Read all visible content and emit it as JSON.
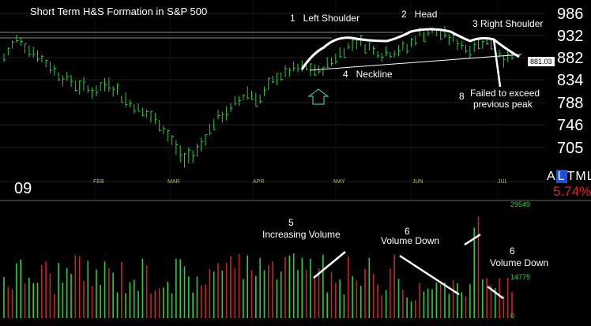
{
  "title": "Short Term H&S Formation in S&P 500",
  "year_label": "09",
  "ticker_letters": [
    "A",
    "L",
    "T",
    "M",
    "L"
  ],
  "change_text": "5.74%",
  "price_box": "881.03",
  "annotations": {
    "left_shoulder": "1   Left Shoulder",
    "head": "2   Head",
    "right_shoulder": "3 Right Shoulder",
    "neckline": "4   Neckline",
    "increasing_num": "5",
    "increasing_text": "Increasing Volume",
    "vol_down_1_num": "6",
    "vol_down_1_text": "Volume Down",
    "vol_down_2_num": "6",
    "vol_down_2_text": "Volume Down",
    "failed_num": "8",
    "failed_line1": "Failed to exceed",
    "failed_line2": "previous peak"
  },
  "colors": {
    "bars": "#2ecc40",
    "volume_up": "#2ecc40",
    "volume_down": "#c0282a",
    "month_labels": "#c8b84a",
    "change_text": "#e02020",
    "ticker_highlight": "#1f4fd8",
    "arrow": "#3fb8b0"
  },
  "chart_data": [
    {
      "type": "line",
      "title": "Short Term H&S Formation in S&P 500",
      "y_axis_labels": [
        "986",
        "932",
        "882",
        "834",
        "788",
        "746",
        "705"
      ],
      "x_axis_labels": [
        "FEB",
        "MAR",
        "APR",
        "MAY",
        "JUN",
        "JUL"
      ],
      "ylim": [
        690,
        1000
      ],
      "price_keypoints": [
        {
          "i": 0,
          "v": 880
        },
        {
          "i": 3,
          "v": 925
        },
        {
          "i": 6,
          "v": 905
        },
        {
          "i": 10,
          "v": 870
        },
        {
          "i": 14,
          "v": 840
        },
        {
          "i": 18,
          "v": 822
        },
        {
          "i": 22,
          "v": 810
        },
        {
          "i": 25,
          "v": 830
        },
        {
          "i": 28,
          "v": 800
        },
        {
          "i": 32,
          "v": 775
        },
        {
          "i": 35,
          "v": 760
        },
        {
          "i": 38,
          "v": 740
        },
        {
          "i": 41,
          "v": 705
        },
        {
          "i": 43,
          "v": 683
        },
        {
          "i": 46,
          "v": 700
        },
        {
          "i": 50,
          "v": 750
        },
        {
          "i": 54,
          "v": 775
        },
        {
          "i": 58,
          "v": 810
        },
        {
          "i": 61,
          "v": 795
        },
        {
          "i": 65,
          "v": 840
        },
        {
          "i": 69,
          "v": 855
        },
        {
          "i": 72,
          "v": 860
        },
        {
          "i": 75,
          "v": 850
        },
        {
          "i": 78,
          "v": 875
        },
        {
          "i": 81,
          "v": 900
        },
        {
          "i": 84,
          "v": 920
        },
        {
          "i": 87,
          "v": 905
        },
        {
          "i": 90,
          "v": 890
        },
        {
          "i": 93,
          "v": 895
        },
        {
          "i": 96,
          "v": 905
        },
        {
          "i": 99,
          "v": 935
        },
        {
          "i": 102,
          "v": 940
        },
        {
          "i": 105,
          "v": 935
        },
        {
          "i": 108,
          "v": 915
        },
        {
          "i": 111,
          "v": 900
        },
        {
          "i": 114,
          "v": 920
        },
        {
          "i": 117,
          "v": 905
        },
        {
          "i": 119,
          "v": 880
        },
        {
          "i": 121,
          "v": 882
        }
      ],
      "bar_count": 122,
      "last_value": 881.03
    },
    {
      "type": "bar",
      "title": "Volume",
      "y_axis_labels": [
        "29549",
        "14775",
        "0"
      ],
      "ylim": [
        0,
        29549
      ],
      "volume_pattern": "random spikes; large red/green spikes at right near Jun-Jul",
      "notable_spikes": [
        {
          "position": "jun_end",
          "color": "green",
          "value": 24000
        },
        {
          "position": "jun_end_plus1",
          "color": "red",
          "value": 27000
        }
      ]
    }
  ]
}
